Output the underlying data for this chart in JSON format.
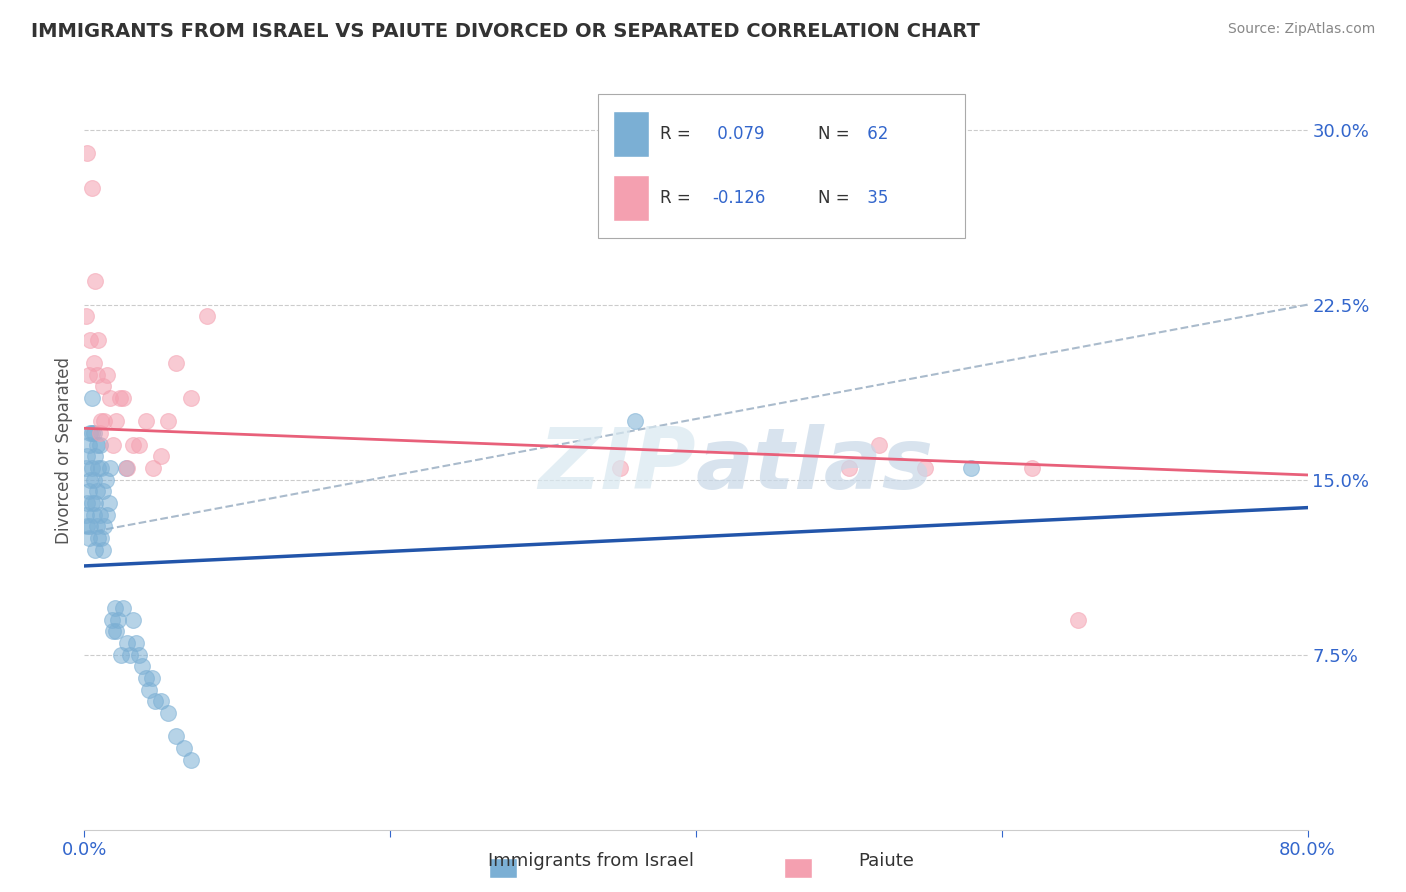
{
  "title": "IMMIGRANTS FROM ISRAEL VS PAIUTE DIVORCED OR SEPARATED CORRELATION CHART",
  "source": "Source: ZipAtlas.com",
  "ylabel": "Divorced or Separated",
  "xmin": 0.0,
  "xmax": 0.8,
  "ymin": 0.0,
  "ymax": 0.325,
  "yticks": [
    0.075,
    0.15,
    0.225,
    0.3
  ],
  "ytick_labels": [
    "7.5%",
    "15.0%",
    "22.5%",
    "30.0%"
  ],
  "xticks": [
    0.0,
    0.2,
    0.4,
    0.6,
    0.8
  ],
  "xtick_labels": [
    "0.0%",
    "",
    "",
    "",
    "80.0%"
  ],
  "legend1_label": "Immigrants from Israel",
  "legend2_label": "Paiute",
  "R1": 0.079,
  "N1": 62,
  "R2": -0.126,
  "N2": 35,
  "blue_color": "#7BAFD4",
  "pink_color": "#F4A0B0",
  "blue_line_color": "#2255AA",
  "pink_line_color": "#E8607A",
  "dash_color": "#AABBCC",
  "blue_x": [
    0.001,
    0.001,
    0.002,
    0.002,
    0.002,
    0.003,
    0.003,
    0.003,
    0.004,
    0.004,
    0.004,
    0.005,
    0.005,
    0.005,
    0.005,
    0.006,
    0.006,
    0.006,
    0.007,
    0.007,
    0.007,
    0.008,
    0.008,
    0.008,
    0.009,
    0.009,
    0.01,
    0.01,
    0.011,
    0.011,
    0.012,
    0.012,
    0.013,
    0.014,
    0.015,
    0.016,
    0.017,
    0.018,
    0.019,
    0.02,
    0.021,
    0.022,
    0.024,
    0.025,
    0.027,
    0.028,
    0.03,
    0.032,
    0.034,
    0.036,
    0.038,
    0.04,
    0.042,
    0.044,
    0.046,
    0.05,
    0.055,
    0.06,
    0.065,
    0.07,
    0.36,
    0.58
  ],
  "blue_y": [
    0.135,
    0.155,
    0.13,
    0.14,
    0.16,
    0.125,
    0.145,
    0.165,
    0.13,
    0.15,
    0.17,
    0.14,
    0.155,
    0.17,
    0.185,
    0.135,
    0.15,
    0.17,
    0.12,
    0.14,
    0.16,
    0.13,
    0.145,
    0.165,
    0.125,
    0.155,
    0.135,
    0.165,
    0.125,
    0.155,
    0.12,
    0.145,
    0.13,
    0.15,
    0.135,
    0.14,
    0.155,
    0.09,
    0.085,
    0.095,
    0.085,
    0.09,
    0.075,
    0.095,
    0.155,
    0.08,
    0.075,
    0.09,
    0.08,
    0.075,
    0.07,
    0.065,
    0.06,
    0.065,
    0.055,
    0.055,
    0.05,
    0.04,
    0.035,
    0.03,
    0.175,
    0.155
  ],
  "pink_x": [
    0.001,
    0.002,
    0.003,
    0.004,
    0.005,
    0.006,
    0.007,
    0.008,
    0.009,
    0.01,
    0.011,
    0.012,
    0.013,
    0.015,
    0.017,
    0.019,
    0.021,
    0.023,
    0.025,
    0.028,
    0.032,
    0.036,
    0.04,
    0.045,
    0.05,
    0.055,
    0.06,
    0.07,
    0.08,
    0.35,
    0.5,
    0.52,
    0.55,
    0.62,
    0.65
  ],
  "pink_y": [
    0.22,
    0.29,
    0.195,
    0.21,
    0.275,
    0.2,
    0.235,
    0.195,
    0.21,
    0.17,
    0.175,
    0.19,
    0.175,
    0.195,
    0.185,
    0.165,
    0.175,
    0.185,
    0.185,
    0.155,
    0.165,
    0.165,
    0.175,
    0.155,
    0.16,
    0.175,
    0.2,
    0.185,
    0.22,
    0.155,
    0.155,
    0.165,
    0.155,
    0.155,
    0.09
  ],
  "blue_trend_x": [
    0.0,
    0.8
  ],
  "blue_trend_y": [
    0.113,
    0.138
  ],
  "pink_trend_x": [
    0.0,
    0.8
  ],
  "pink_trend_y": [
    0.172,
    0.152
  ],
  "dash_trend_x": [
    0.0,
    0.8
  ],
  "dash_trend_y": [
    0.127,
    0.225
  ]
}
